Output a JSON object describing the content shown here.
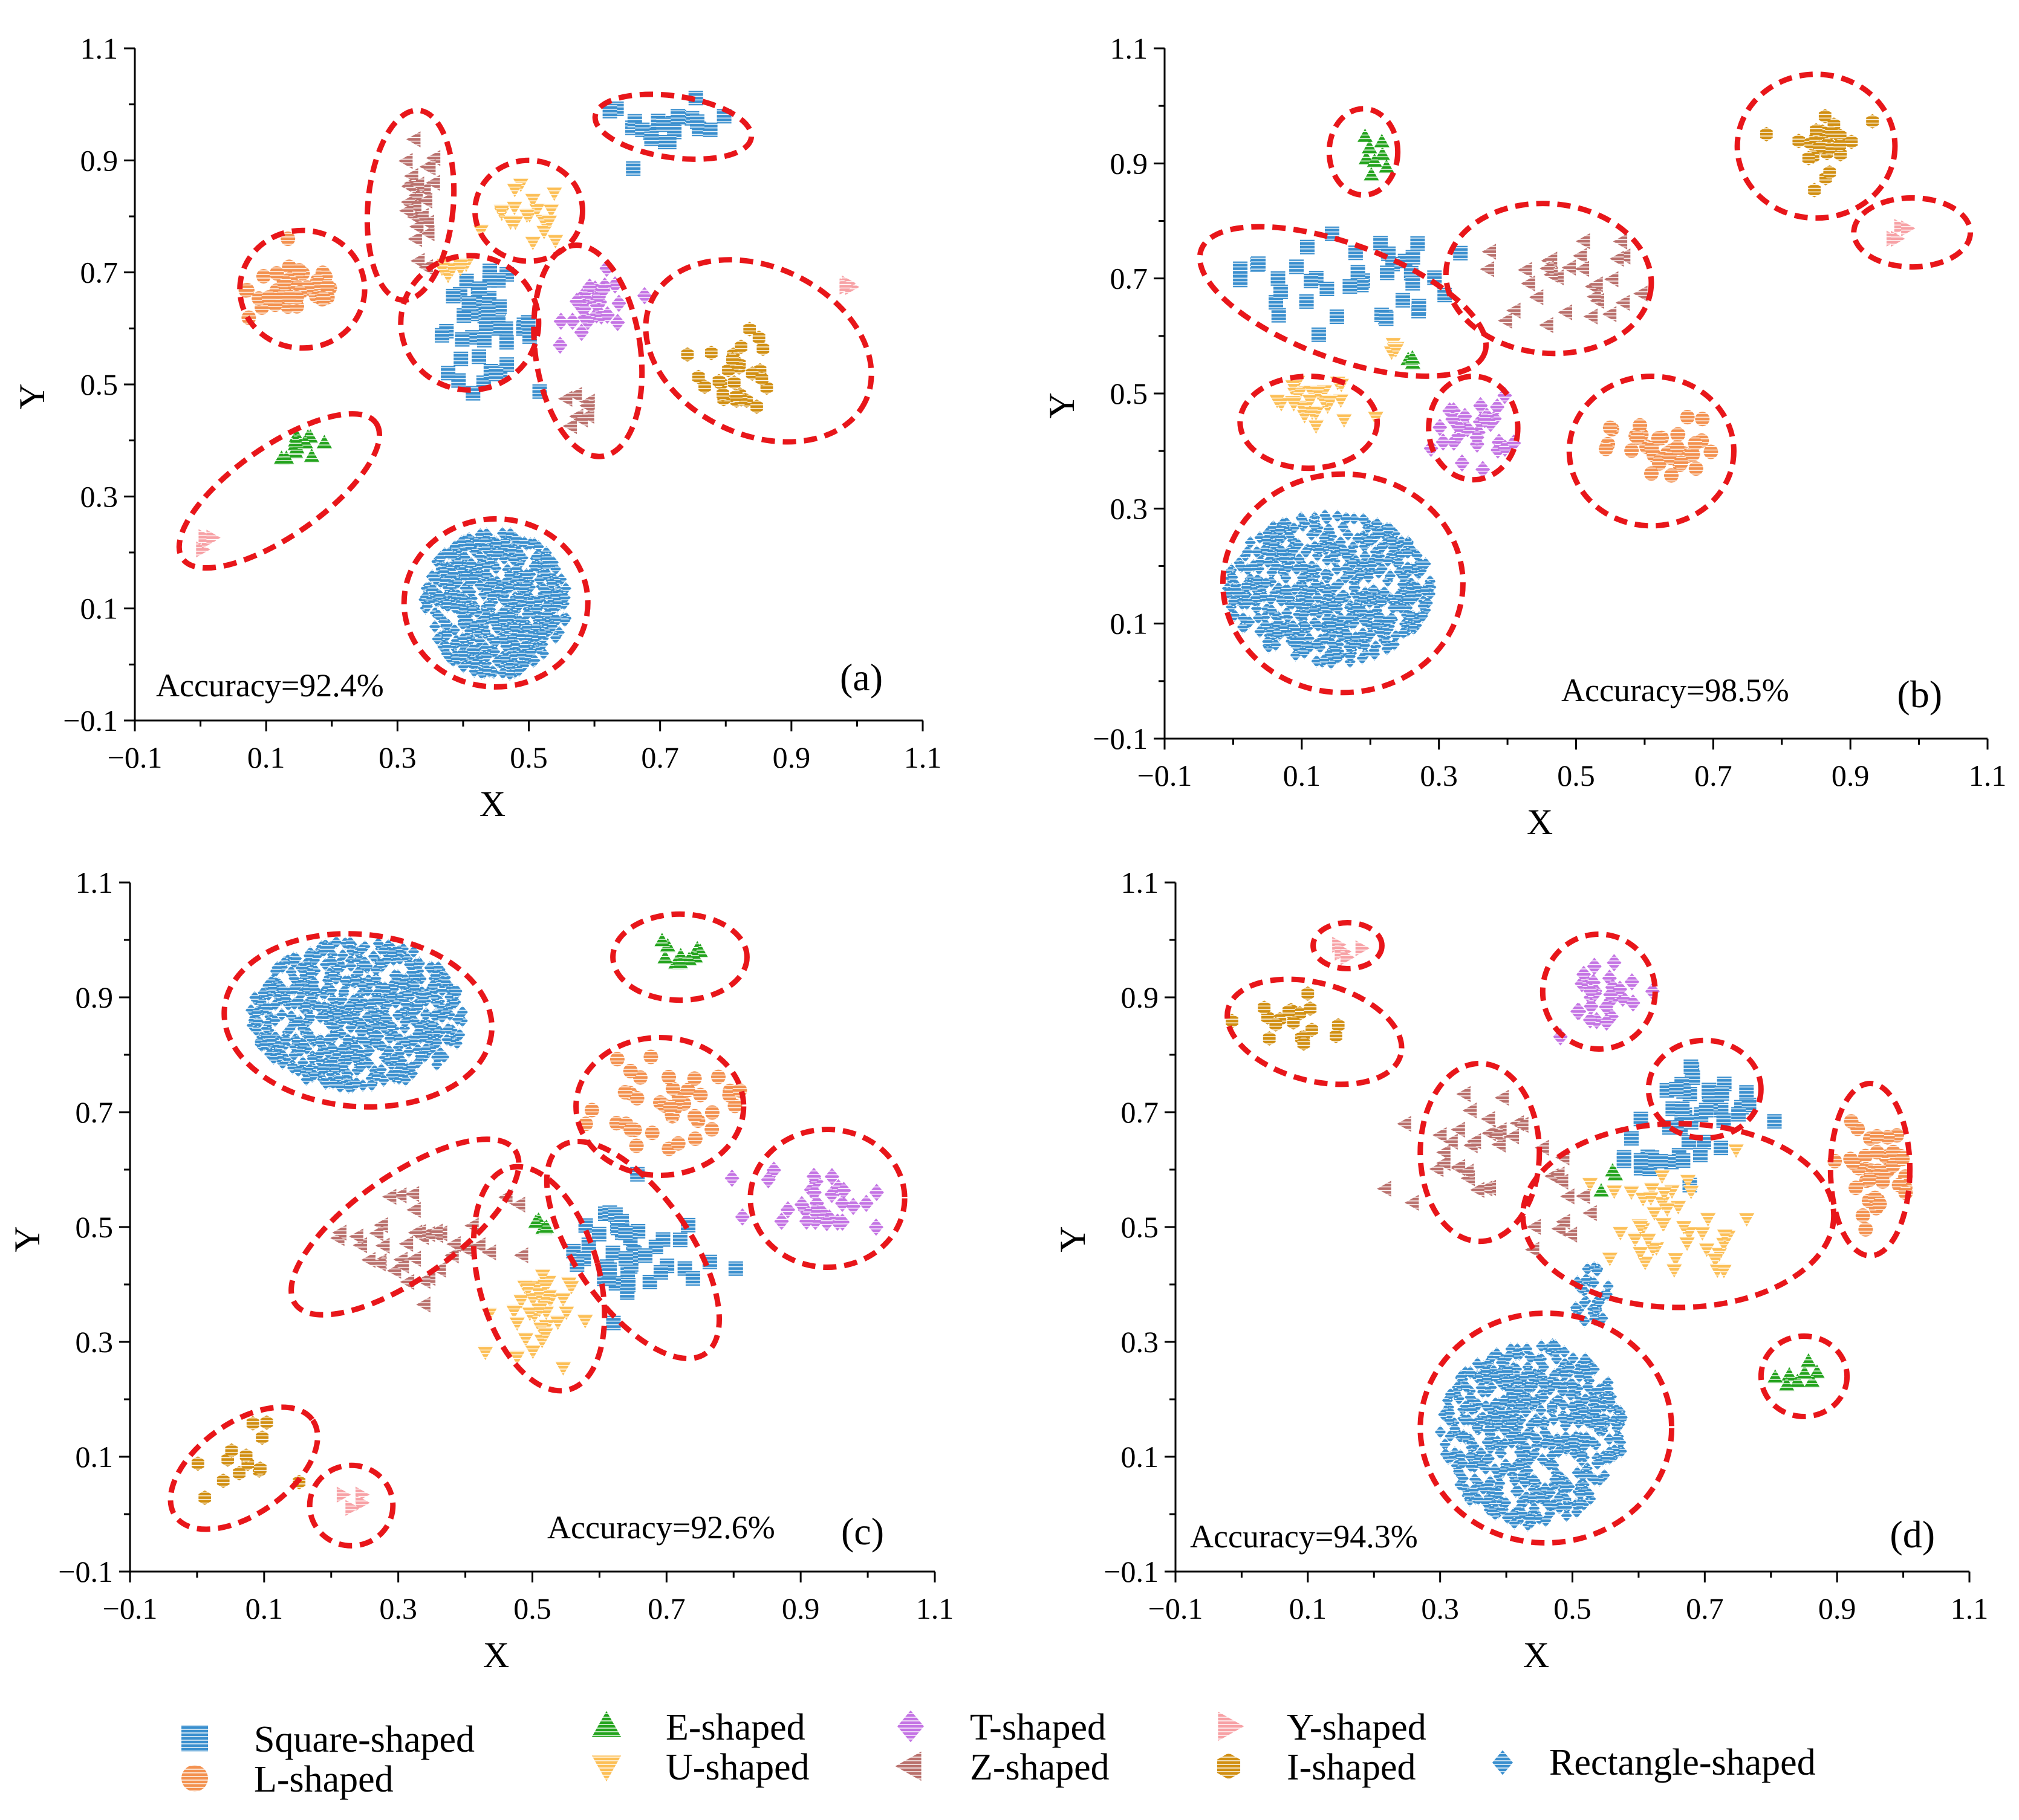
{
  "figure": {
    "legend": {
      "title": "",
      "items": [
        {
          "key": "square",
          "label": "Square-shaped"
        },
        {
          "key": "l",
          "label": "L-shaped"
        },
        {
          "key": "e",
          "label": "E-shaped"
        },
        {
          "key": "u",
          "label": "U-shaped"
        },
        {
          "key": "t",
          "label": "T-shaped"
        },
        {
          "key": "z",
          "label": "Z-shaped"
        },
        {
          "key": "y",
          "label": "Y-shaped"
        },
        {
          "key": "i",
          "label": "I-shaped"
        },
        {
          "key": "rect",
          "label": "Rectangle-shaped"
        }
      ]
    },
    "colors": {
      "square": "#3a8fce",
      "l": "#f3914f",
      "e": "#23a31d",
      "u": "#fcbf56",
      "t": "#c474e4",
      "z": "#b9706c",
      "y": "#f7a1a5",
      "i": "#d18f12",
      "rect": "#3a8fce",
      "ellipse": "#e8161a"
    },
    "markers": {
      "square": "square-icon",
      "l": "circle-icon",
      "e": "triangle-up-icon",
      "u": "triangle-down-icon",
      "t": "diamond-icon",
      "z": "triangle-left-icon",
      "y": "triangle-right-icon",
      "i": "hexagon-icon",
      "rect": "diamond-icon"
    }
  },
  "chart_data": [
    {
      "type": "scatter",
      "panel": "(a)",
      "accuracy_label": "Accuracy=92.4%",
      "xlabel": "X",
      "ylabel": "Y",
      "xlim": [
        -0.1,
        1.1
      ],
      "ylim": [
        -0.1,
        1.1
      ],
      "xticks": [
        -0.1,
        0.1,
        0.3,
        0.5,
        0.7,
        0.9,
        1.1
      ],
      "yticks": [
        -0.1,
        0.1,
        0.3,
        0.5,
        0.7,
        0.9,
        1.1
      ],
      "tick_labels": [
        "−0.1",
        "0.1",
        "0.3",
        "0.5",
        "0.7",
        "0.9",
        "1.1"
      ],
      "clusters": [
        {
          "class": "rect",
          "cx": 0.45,
          "cy": 0.11,
          "rx": 0.11,
          "ry": 0.13,
          "n": 520
        },
        {
          "class": "square",
          "cx": 0.71,
          "cy": 0.96,
          "rx": 0.09,
          "ry": 0.04,
          "n": 22
        },
        {
          "class": "square",
          "cx": 0.43,
          "cy": 0.6,
          "rx": 0.07,
          "ry": 0.08,
          "n": 45
        },
        {
          "class": "l",
          "cx": 0.15,
          "cy": 0.67,
          "rx": 0.07,
          "ry": 0.05,
          "n": 45
        },
        {
          "class": "z",
          "cx": 0.33,
          "cy": 0.81,
          "rx": 0.03,
          "ry": 0.11,
          "n": 26
        },
        {
          "class": "z",
          "cx": 0.58,
          "cy": 0.45,
          "rx": 0.03,
          "ry": 0.03,
          "n": 8
        },
        {
          "class": "u",
          "cx": 0.5,
          "cy": 0.8,
          "rx": 0.05,
          "ry": 0.05,
          "n": 20
        },
        {
          "class": "u",
          "cx": 0.38,
          "cy": 0.7,
          "rx": 0.03,
          "ry": 0.02,
          "n": 8
        },
        {
          "class": "t",
          "cx": 0.61,
          "cy": 0.64,
          "rx": 0.05,
          "ry": 0.05,
          "n": 30
        },
        {
          "class": "i",
          "cx": 0.82,
          "cy": 0.52,
          "rx": 0.05,
          "ry": 0.06,
          "n": 30
        },
        {
          "class": "e",
          "cx": 0.16,
          "cy": 0.39,
          "rx": 0.04,
          "ry": 0.02,
          "n": 12
        },
        {
          "class": "y",
          "cx": 0.01,
          "cy": 0.22,
          "rx": 0.01,
          "ry": 0.02,
          "n": 4
        },
        {
          "class": "y",
          "cx": 0.98,
          "cy": 0.68,
          "rx": 0.015,
          "ry": 0.02,
          "n": 4
        }
      ],
      "ellipses": [
        {
          "cx": 0.45,
          "cy": 0.11,
          "rx": 0.14,
          "ry": 0.15,
          "angle": 0
        },
        {
          "cx": 0.72,
          "cy": 0.96,
          "rx": 0.12,
          "ry": 0.055,
          "angle": -8
        },
        {
          "cx": 0.155,
          "cy": 0.67,
          "rx": 0.095,
          "ry": 0.105,
          "angle": 0
        },
        {
          "cx": 0.32,
          "cy": 0.82,
          "rx": 0.065,
          "ry": 0.17,
          "angle": -5
        },
        {
          "cx": 0.41,
          "cy": 0.61,
          "rx": 0.105,
          "ry": 0.12,
          "angle": 0
        },
        {
          "cx": 0.5,
          "cy": 0.81,
          "rx": 0.082,
          "ry": 0.09,
          "angle": 0
        },
        {
          "cx": 0.59,
          "cy": 0.56,
          "rx": 0.08,
          "ry": 0.19,
          "angle": 8
        },
        {
          "cx": 0.85,
          "cy": 0.56,
          "rx": 0.18,
          "ry": 0.15,
          "angle": -25
        },
        {
          "cx": 0.12,
          "cy": 0.31,
          "rx": 0.18,
          "ry": 0.08,
          "angle": 35
        }
      ]
    },
    {
      "type": "scatter",
      "panel": "(b)",
      "accuracy_label": "Accuracy=98.5%",
      "xlabel": "X",
      "ylabel": "Y",
      "xlim": [
        -0.1,
        1.1
      ],
      "ylim": [
        -0.1,
        1.1
      ],
      "xticks": [
        -0.1,
        0.1,
        0.3,
        0.5,
        0.7,
        0.9,
        1.1
      ],
      "yticks": [
        -0.1,
        0.1,
        0.3,
        0.5,
        0.7,
        0.9,
        1.1
      ],
      "tick_labels": [
        "−0.1",
        "0.1",
        "0.3",
        "0.5",
        "0.7",
        "0.9",
        "1.1"
      ],
      "clusters": [
        {
          "class": "rect",
          "cx": 0.14,
          "cy": 0.16,
          "rx": 0.15,
          "ry": 0.13,
          "n": 560
        },
        {
          "class": "square",
          "cx": 0.16,
          "cy": 0.7,
          "rx": 0.14,
          "ry": 0.08,
          "n": 40
        },
        {
          "class": "l",
          "cx": 0.63,
          "cy": 0.4,
          "rx": 0.07,
          "ry": 0.05,
          "n": 40
        },
        {
          "class": "u",
          "cx": 0.12,
          "cy": 0.48,
          "rx": 0.07,
          "ry": 0.04,
          "n": 28
        },
        {
          "class": "u",
          "cx": 0.24,
          "cy": 0.58,
          "rx": 0.02,
          "ry": 0.02,
          "n": 6
        },
        {
          "class": "t",
          "cx": 0.35,
          "cy": 0.44,
          "rx": 0.05,
          "ry": 0.05,
          "n": 28
        },
        {
          "class": "z",
          "cx": 0.5,
          "cy": 0.7,
          "rx": 0.12,
          "ry": 0.07,
          "n": 30
        },
        {
          "class": "e",
          "cx": 0.2,
          "cy": 0.91,
          "rx": 0.02,
          "ry": 0.03,
          "n": 8
        },
        {
          "class": "e",
          "cx": 0.26,
          "cy": 0.56,
          "rx": 0.015,
          "ry": 0.02,
          "n": 4
        },
        {
          "class": "i",
          "cx": 0.86,
          "cy": 0.94,
          "rx": 0.05,
          "ry": 0.05,
          "n": 26
        },
        {
          "class": "y",
          "cx": 0.98,
          "cy": 0.77,
          "rx": 0.02,
          "ry": 0.02,
          "n": 4
        }
      ],
      "ellipses": [
        {
          "cx": 0.16,
          "cy": 0.17,
          "rx": 0.175,
          "ry": 0.19,
          "angle": 0
        },
        {
          "cx": 0.16,
          "cy": 0.66,
          "rx": 0.22,
          "ry": 0.1,
          "angle": -20
        },
        {
          "cx": 0.46,
          "cy": 0.7,
          "rx": 0.15,
          "ry": 0.13,
          "angle": -5
        },
        {
          "cx": 0.11,
          "cy": 0.45,
          "rx": 0.1,
          "ry": 0.08,
          "angle": 0
        },
        {
          "cx": 0.35,
          "cy": 0.44,
          "rx": 0.065,
          "ry": 0.09,
          "angle": 0
        },
        {
          "cx": 0.61,
          "cy": 0.4,
          "rx": 0.12,
          "ry": 0.13,
          "angle": 0
        },
        {
          "cx": 0.19,
          "cy": 0.92,
          "rx": 0.05,
          "ry": 0.075,
          "angle": 0
        },
        {
          "cx": 0.85,
          "cy": 0.93,
          "rx": 0.115,
          "ry": 0.125,
          "angle": 0
        },
        {
          "cx": 0.99,
          "cy": 0.78,
          "rx": 0.085,
          "ry": 0.06,
          "angle": 0
        }
      ]
    },
    {
      "type": "scatter",
      "panel": "(c)",
      "accuracy_label": "Accuracy=92.6%",
      "xlabel": "X",
      "ylabel": "Y",
      "xlim": [
        -0.1,
        1.1
      ],
      "ylim": [
        -0.1,
        1.1
      ],
      "xticks": [
        -0.1,
        0.1,
        0.3,
        0.5,
        0.7,
        0.9,
        1.1
      ],
      "yticks": [
        -0.1,
        0.1,
        0.3,
        0.5,
        0.7,
        0.9,
        1.1
      ],
      "tick_labels": [
        "−0.1",
        "0.1",
        "0.3",
        "0.5",
        "0.7",
        "0.9",
        "1.1"
      ],
      "clusters": [
        {
          "class": "rect",
          "cx": 0.24,
          "cy": 0.87,
          "rx": 0.16,
          "ry": 0.13,
          "n": 600
        },
        {
          "class": "square",
          "cx": 0.64,
          "cy": 0.45,
          "rx": 0.1,
          "ry": 0.1,
          "n": 45
        },
        {
          "class": "l",
          "cx": 0.7,
          "cy": 0.71,
          "rx": 0.09,
          "ry": 0.06,
          "n": 40
        },
        {
          "class": "e",
          "cx": 0.72,
          "cy": 0.97,
          "rx": 0.04,
          "ry": 0.03,
          "n": 10
        },
        {
          "class": "e",
          "cx": 0.52,
          "cy": 0.51,
          "rx": 0.02,
          "ry": 0.02,
          "n": 5
        },
        {
          "class": "t",
          "cx": 0.93,
          "cy": 0.55,
          "rx": 0.08,
          "ry": 0.05,
          "n": 30
        },
        {
          "class": "z",
          "cx": 0.33,
          "cy": 0.48,
          "rx": 0.13,
          "ry": 0.09,
          "n": 40
        },
        {
          "class": "u",
          "cx": 0.5,
          "cy": 0.35,
          "rx": 0.05,
          "ry": 0.08,
          "n": 35
        },
        {
          "class": "i",
          "cx": 0.06,
          "cy": 0.09,
          "rx": 0.06,
          "ry": 0.06,
          "n": 14
        },
        {
          "class": "y",
          "cx": 0.23,
          "cy": 0.02,
          "rx": 0.02,
          "ry": 0.02,
          "n": 4
        }
      ],
      "ellipses": [
        {
          "cx": 0.24,
          "cy": 0.86,
          "rx": 0.2,
          "ry": 0.15,
          "angle": -5
        },
        {
          "cx": 0.72,
          "cy": 0.97,
          "rx": 0.1,
          "ry": 0.075,
          "angle": 0
        },
        {
          "cx": 0.69,
          "cy": 0.71,
          "rx": 0.125,
          "ry": 0.12,
          "angle": 0
        },
        {
          "cx": 0.94,
          "cy": 0.55,
          "rx": 0.115,
          "ry": 0.12,
          "angle": 0
        },
        {
          "cx": 0.31,
          "cy": 0.5,
          "rx": 0.2,
          "ry": 0.09,
          "angle": 35
        },
        {
          "cx": 0.51,
          "cy": 0.41,
          "rx": 0.09,
          "ry": 0.2,
          "angle": 15
        },
        {
          "cx": 0.65,
          "cy": 0.46,
          "rx": 0.085,
          "ry": 0.22,
          "angle": 35
        },
        {
          "cx": 0.07,
          "cy": 0.08,
          "rx": 0.125,
          "ry": 0.08,
          "angle": 35
        },
        {
          "cx": 0.23,
          "cy": 0.015,
          "rx": 0.062,
          "ry": 0.07,
          "angle": 0
        }
      ]
    },
    {
      "type": "scatter",
      "panel": "(d)",
      "accuracy_label": "Accuracy=94.3%",
      "xlabel": "X",
      "ylabel": "Y",
      "xlim": [
        -0.1,
        1.1
      ],
      "ylim": [
        -0.1,
        1.1
      ],
      "xticks": [
        -0.1,
        0.1,
        0.3,
        0.5,
        0.7,
        0.9,
        1.1
      ],
      "yticks": [
        -0.1,
        0.1,
        0.3,
        0.5,
        0.7,
        0.9,
        1.1
      ],
      "tick_labels": [
        "−0.1",
        "0.1",
        "0.3",
        "0.5",
        "0.7",
        "0.9",
        "1.1"
      ],
      "clusters": [
        {
          "class": "rect",
          "cx": 0.44,
          "cy": 0.14,
          "rx": 0.14,
          "ry": 0.16,
          "n": 560
        },
        {
          "class": "rect",
          "cx": 0.53,
          "cy": 0.38,
          "rx": 0.03,
          "ry": 0.05,
          "n": 30
        },
        {
          "class": "square",
          "cx": 0.7,
          "cy": 0.72,
          "rx": 0.07,
          "ry": 0.08,
          "n": 35
        },
        {
          "class": "square",
          "cx": 0.62,
          "cy": 0.62,
          "rx": 0.06,
          "ry": 0.05,
          "n": 15
        },
        {
          "class": "l",
          "cx": 0.96,
          "cy": 0.6,
          "rx": 0.05,
          "ry": 0.07,
          "n": 40
        },
        {
          "class": "t",
          "cx": 0.54,
          "cy": 0.91,
          "rx": 0.07,
          "ry": 0.06,
          "n": 30
        },
        {
          "class": "z",
          "cx": 0.34,
          "cy": 0.64,
          "rx": 0.08,
          "ry": 0.1,
          "n": 30
        },
        {
          "class": "z",
          "cx": 0.47,
          "cy": 0.56,
          "rx": 0.05,
          "ry": 0.06,
          "n": 12
        },
        {
          "class": "u",
          "cx": 0.66,
          "cy": 0.5,
          "rx": 0.1,
          "ry": 0.09,
          "n": 45
        },
        {
          "class": "e",
          "cx": 0.85,
          "cy": 0.24,
          "rx": 0.04,
          "ry": 0.03,
          "n": 8
        },
        {
          "class": "e",
          "cx": 0.56,
          "cy": 0.58,
          "rx": 0.015,
          "ry": 0.02,
          "n": 3
        },
        {
          "class": "i",
          "cx": 0.08,
          "cy": 0.85,
          "rx": 0.07,
          "ry": 0.05,
          "n": 18
        },
        {
          "class": "y",
          "cx": 0.15,
          "cy": 0.99,
          "rx": 0.03,
          "ry": 0.02,
          "n": 6
        }
      ],
      "ellipses": [
        {
          "cx": 0.46,
          "cy": 0.15,
          "rx": 0.19,
          "ry": 0.2,
          "angle": 0
        },
        {
          "cx": 0.16,
          "cy": 0.99,
          "rx": 0.052,
          "ry": 0.04,
          "angle": 0
        },
        {
          "cx": 0.11,
          "cy": 0.84,
          "rx": 0.135,
          "ry": 0.085,
          "angle": -15
        },
        {
          "cx": 0.54,
          "cy": 0.91,
          "rx": 0.085,
          "ry": 0.1,
          "angle": 0
        },
        {
          "cx": 0.7,
          "cy": 0.74,
          "rx": 0.085,
          "ry": 0.085,
          "angle": 0
        },
        {
          "cx": 0.36,
          "cy": 0.63,
          "rx": 0.09,
          "ry": 0.155,
          "angle": 0
        },
        {
          "cx": 0.66,
          "cy": 0.52,
          "rx": 0.235,
          "ry": 0.16,
          "angle": 0
        },
        {
          "cx": 0.95,
          "cy": 0.6,
          "rx": 0.06,
          "ry": 0.15,
          "angle": 0
        },
        {
          "cx": 0.85,
          "cy": 0.24,
          "rx": 0.065,
          "ry": 0.07,
          "angle": 0
        }
      ]
    }
  ]
}
